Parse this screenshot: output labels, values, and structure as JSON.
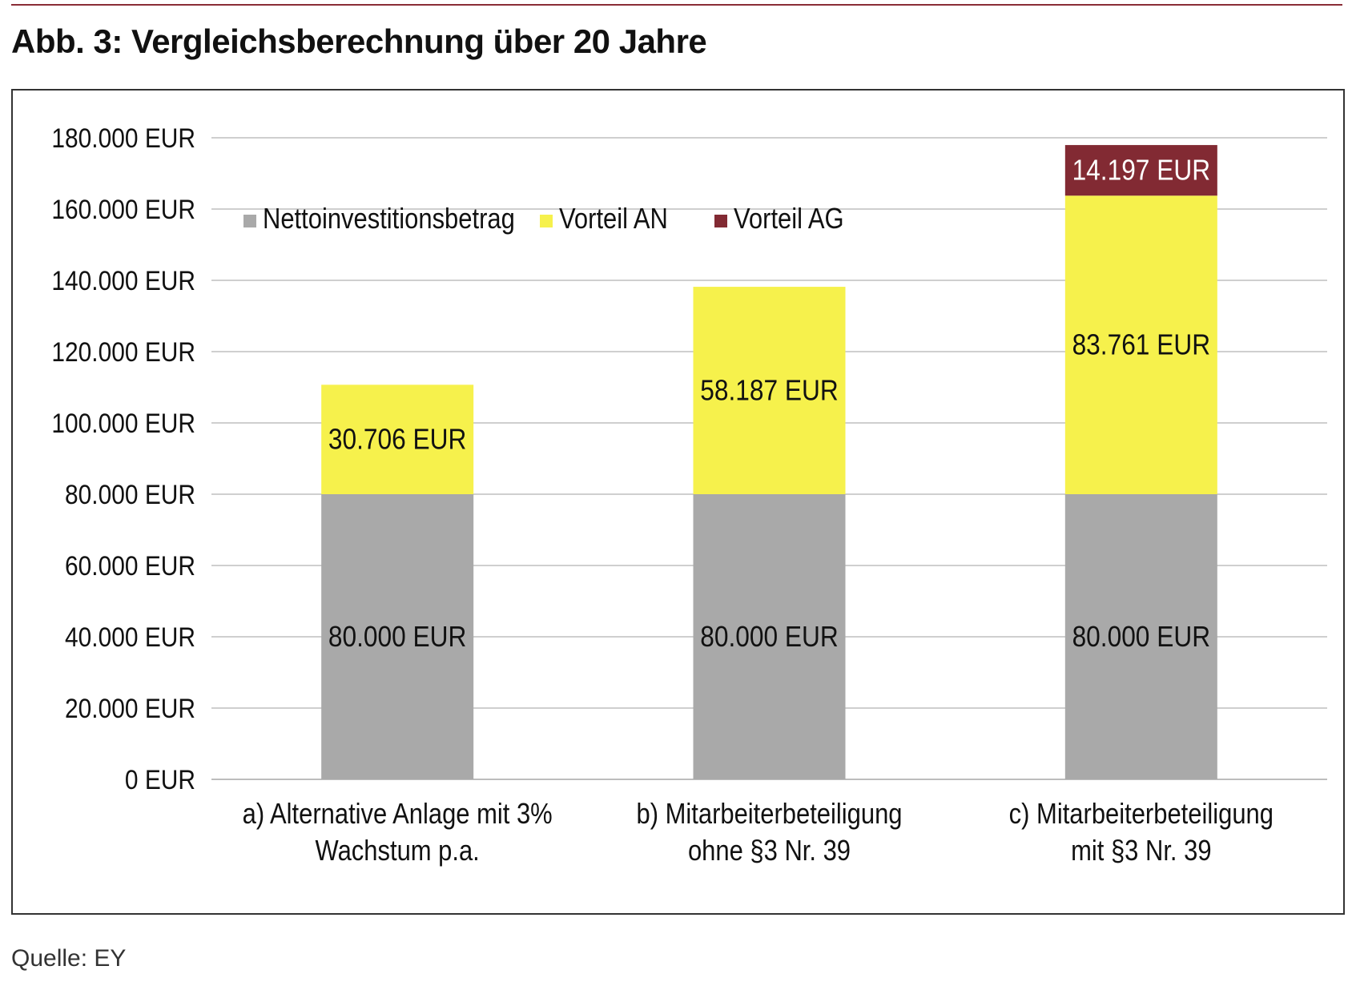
{
  "figure": {
    "title": "Abb. 3: Vergleichsberechnung über 20 Jahre",
    "source": "Quelle: EY"
  },
  "chart_data": {
    "type": "bar",
    "stacked": true,
    "categories": [
      [
        "a) Alternative Anlage mit 3%",
        "Wachstum p.a."
      ],
      [
        "b) Mitarbeiterbeteiligung",
        "ohne §3 Nr. 39"
      ],
      [
        "c) Mitarbeiterbeteiligung",
        "mit §3 Nr. 39"
      ]
    ],
    "series": [
      {
        "name": "Nettoinvestitionsbetrag",
        "color": "#a9a9a9",
        "values": [
          80000,
          80000,
          80000
        ],
        "labels": [
          "80.000 EUR",
          "80.000 EUR",
          "80.000 EUR"
        ],
        "label_color": "#111111"
      },
      {
        "name": "Vorteil AN",
        "color": "#f6f14c",
        "values": [
          30706,
          58187,
          83761
        ],
        "labels": [
          "30.706 EUR",
          "58.187 EUR",
          "83.761 EUR"
        ],
        "label_color": "#111111"
      },
      {
        "name": "Vorteil AG",
        "color": "#822a33",
        "values": [
          0,
          0,
          14197
        ],
        "labels": [
          "",
          "",
          "14.197 EUR"
        ],
        "label_color": "#ffffff"
      }
    ],
    "ylim": [
      0,
      180000
    ],
    "yticks": [
      0,
      20000,
      40000,
      60000,
      80000,
      100000,
      120000,
      140000,
      160000,
      180000
    ],
    "ytick_labels": [
      "0 EUR",
      "20.000 EUR",
      "40.000 EUR",
      "60.000 EUR",
      "80.000 EUR",
      "100.000 EUR",
      "120.000 EUR",
      "140.000 EUR",
      "160.000 EUR",
      "180.000 EUR"
    ],
    "grid": true,
    "legend_position": "top-left"
  }
}
